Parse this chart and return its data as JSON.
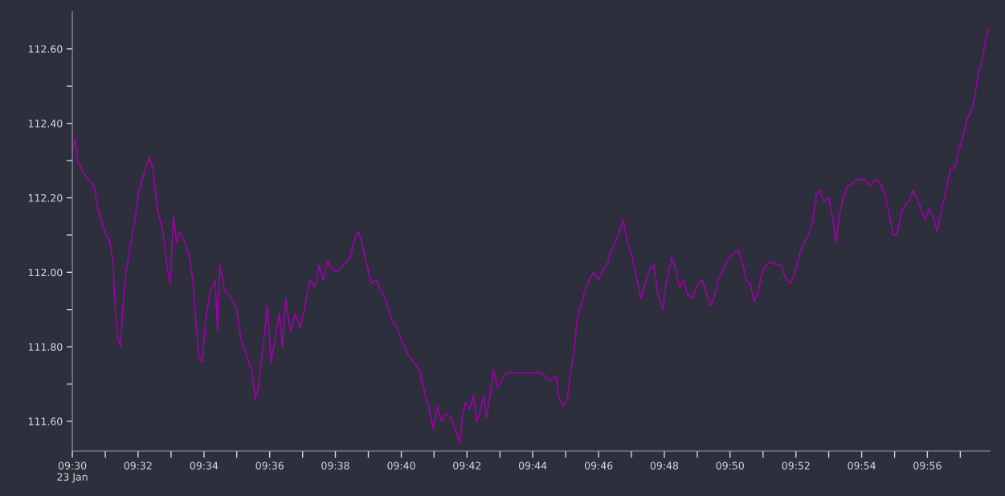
{
  "chart_data": {
    "type": "line",
    "x": [
      9.5,
      9.5012,
      9.5028,
      9.5053,
      9.5081,
      9.511,
      9.513,
      9.5163,
      9.5191,
      9.5207,
      9.522,
      9.5232,
      9.5244,
      9.5256,
      9.5272,
      9.5297,
      9.5317,
      9.5337,
      9.5366,
      9.539,
      9.5407,
      9.5431,
      9.5459,
      9.5484,
      9.5496,
      9.5512,
      9.5528,
      9.5545,
      9.5569,
      9.5593,
      9.561,
      9.5626,
      9.5642,
      9.5659,
      9.5675,
      9.5699,
      9.5724,
      9.5736,
      9.5748,
      9.5772,
      9.5805,
      9.5833,
      9.5854,
      9.5882,
      9.5907,
      9.5927,
      9.5943,
      9.5967,
      9.5988,
      9.6008,
      9.6028,
      9.6049,
      9.6065,
      9.6081,
      9.6106,
      9.613,
      9.6154,
      9.6179,
      9.6203,
      9.6228,
      9.6252,
      9.6272,
      9.6293,
      9.6313,
      9.6341,
      9.6374,
      9.6407,
      9.6431,
      9.6451,
      9.6467,
      9.6492,
      9.6516,
      9.6541,
      9.6565,
      9.6593,
      9.6618,
      9.6646,
      9.6667,
      9.6699,
      9.6728,
      9.6756,
      9.678,
      9.6809,
      9.6829,
      9.685,
      9.687,
      9.6894,
      9.6919,
      9.6939,
      9.6963,
      9.6976,
      9.6992,
      9.7012,
      9.7033,
      9.7049,
      9.7065,
      9.7085,
      9.7098,
      9.7118,
      9.7134,
      9.7154,
      9.7175,
      9.7195,
      9.7256,
      9.7297,
      9.7337,
      9.7378,
      9.7419,
      9.7451,
      9.7467,
      9.7488,
      9.7508,
      9.7524,
      9.7541,
      9.7557,
      9.7577,
      9.7598,
      9.7618,
      9.7642,
      9.7667,
      9.7691,
      9.7711,
      9.7732,
      9.7752,
      9.7772,
      9.7793,
      9.7813,
      9.7837,
      9.7862,
      9.7882,
      9.7902,
      9.7927,
      9.7947,
      9.7967,
      9.7992,
      9.8012,
      9.8037,
      9.8057,
      9.8077,
      9.8098,
      9.8118,
      9.8142,
      9.8163,
      9.8191,
      9.8211,
      9.8232,
      9.8252,
      9.8272,
      9.8301,
      9.8329,
      9.8354,
      9.8374,
      9.8394,
      9.8415,
      9.8435,
      9.8455,
      9.8476,
      9.8496,
      9.8516,
      9.8541,
      9.8565,
      9.8589,
      9.8618,
      9.8642,
      9.8663,
      9.8687,
      9.8707,
      9.8732,
      9.8752,
      9.8772,
      9.8789,
      9.8809,
      9.8833,
      9.8854,
      9.887,
      9.8886,
      9.8902,
      9.8927,
      9.8955,
      9.8984,
      9.9012,
      9.9045,
      9.9069,
      9.9093,
      9.9118,
      9.9138,
      9.9159,
      9.9179,
      9.9199,
      9.922,
      9.924,
      9.926,
      9.928,
      9.9301,
      9.9321,
      9.9341,
      9.9362,
      9.9382,
      9.9398,
      9.9415,
      9.9431,
      9.9451,
      9.9472,
      9.9492,
      9.9512,
      9.9533,
      9.9553,
      9.9573,
      9.9593,
      9.9614,
      9.963,
      9.9642
    ],
    "series": [
      {
        "color": "#9c00a8",
        "values": [
          112.32,
          112.36,
          112.3,
          112.27,
          112.25,
          112.23,
          112.17,
          112.11,
          112.08,
          112.02,
          111.88,
          111.82,
          111.8,
          111.91,
          112.0,
          112.08,
          112.14,
          112.22,
          112.27,
          112.31,
          112.28,
          112.17,
          112.11,
          112.0,
          111.97,
          112.15,
          112.08,
          112.11,
          112.08,
          112.04,
          111.98,
          111.87,
          111.77,
          111.76,
          111.87,
          111.95,
          111.98,
          111.84,
          112.02,
          111.95,
          111.93,
          111.9,
          111.82,
          111.78,
          111.74,
          111.66,
          111.69,
          111.8,
          111.91,
          111.76,
          111.82,
          111.89,
          111.8,
          111.93,
          111.84,
          111.89,
          111.85,
          111.91,
          111.98,
          111.96,
          112.02,
          111.98,
          112.03,
          112.01,
          112.0,
          112.02,
          112.04,
          112.09,
          112.11,
          112.08,
          112.02,
          111.97,
          111.98,
          111.95,
          111.92,
          111.87,
          111.85,
          111.82,
          111.78,
          111.76,
          111.74,
          111.69,
          111.63,
          111.58,
          111.64,
          111.6,
          111.62,
          111.61,
          111.58,
          111.54,
          111.61,
          111.65,
          111.63,
          111.67,
          111.6,
          111.62,
          111.67,
          111.61,
          111.67,
          111.74,
          111.69,
          111.71,
          111.73,
          111.73,
          111.73,
          111.73,
          111.73,
          111.71,
          111.72,
          111.66,
          111.64,
          111.66,
          111.73,
          111.78,
          111.87,
          111.91,
          111.95,
          111.98,
          112.0,
          111.98,
          112.01,
          112.02,
          112.06,
          112.08,
          112.11,
          112.14,
          112.08,
          112.04,
          111.98,
          111.93,
          111.97,
          112.01,
          112.02,
          111.94,
          111.9,
          111.98,
          112.04,
          112.01,
          111.96,
          111.98,
          111.94,
          111.93,
          111.96,
          111.98,
          111.95,
          111.91,
          111.93,
          111.98,
          112.01,
          112.04,
          112.05,
          112.06,
          112.03,
          111.98,
          111.97,
          111.92,
          111.95,
          112.0,
          112.02,
          112.03,
          112.02,
          112.02,
          111.98,
          111.97,
          112.0,
          112.05,
          112.08,
          112.1,
          112.14,
          112.21,
          112.22,
          112.19,
          112.2,
          112.14,
          112.08,
          112.15,
          112.19,
          112.23,
          112.24,
          112.25,
          112.25,
          112.23,
          112.25,
          112.24,
          112.21,
          112.16,
          112.1,
          112.1,
          112.16,
          112.18,
          112.19,
          112.22,
          112.2,
          112.17,
          112.14,
          112.17,
          112.15,
          112.11,
          112.15,
          112.19,
          112.23,
          112.28,
          112.28,
          112.33,
          112.36,
          112.41,
          112.43,
          112.47,
          112.54,
          112.58,
          112.63,
          112.65
        ]
      }
    ],
    "xlim": [
      9.5,
      9.965
    ],
    "xticks": [
      {
        "value": 9.5,
        "label": "09:30\n23 Jan"
      },
      {
        "value": 9.5167,
        "label": null
      },
      {
        "value": 9.5333,
        "label": "09:32"
      },
      {
        "value": 9.55,
        "label": null
      },
      {
        "value": 9.5667,
        "label": "09:34"
      },
      {
        "value": 9.5833,
        "label": null
      },
      {
        "value": 9.6,
        "label": "09:36"
      },
      {
        "value": 9.6167,
        "label": null
      },
      {
        "value": 9.6333,
        "label": "09:38"
      },
      {
        "value": 9.65,
        "label": null
      },
      {
        "value": 9.6667,
        "label": "09:40"
      },
      {
        "value": 9.6833,
        "label": null
      },
      {
        "value": 9.7,
        "label": "09:42"
      },
      {
        "value": 9.7167,
        "label": null
      },
      {
        "value": 9.7333,
        "label": "09:44"
      },
      {
        "value": 9.75,
        "label": null
      },
      {
        "value": 9.7667,
        "label": "09:46"
      },
      {
        "value": 9.7833,
        "label": null
      },
      {
        "value": 9.8,
        "label": "09:48"
      },
      {
        "value": 9.8167,
        "label": null
      },
      {
        "value": 9.8333,
        "label": "09:50"
      },
      {
        "value": 9.85,
        "label": null
      },
      {
        "value": 9.8667,
        "label": "09:52"
      },
      {
        "value": 9.8833,
        "label": null
      },
      {
        "value": 9.9,
        "label": "09:54"
      },
      {
        "value": 9.9167,
        "label": null
      },
      {
        "value": 9.9333,
        "label": "09:56"
      },
      {
        "value": 9.95,
        "label": null
      }
    ],
    "ylim": [
      111.52,
      112.7
    ],
    "yticks": [
      {
        "value": 111.6,
        "label": "111.60"
      },
      {
        "value": 111.7,
        "label": null
      },
      {
        "value": 111.8,
        "label": "111.80"
      },
      {
        "value": 111.9,
        "label": null
      },
      {
        "value": 112.0,
        "label": "112.00"
      },
      {
        "value": 112.1,
        "label": null
      },
      {
        "value": 112.2,
        "label": "112.20"
      },
      {
        "value": 112.3,
        "label": null
      },
      {
        "value": 112.4,
        "label": "112.40"
      },
      {
        "value": 112.5,
        "label": null
      },
      {
        "value": 112.6,
        "label": "112.60"
      }
    ],
    "line_style": "solid",
    "marker": "none"
  }
}
